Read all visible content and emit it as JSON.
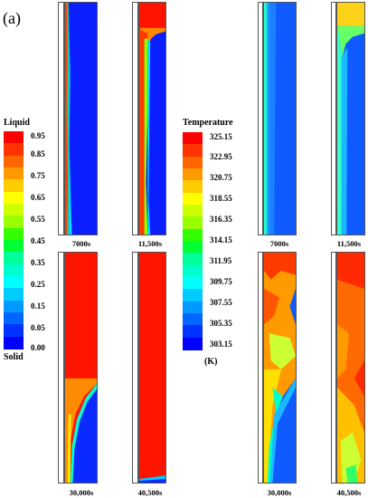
{
  "panel_label": "(a)",
  "liquid_legend": {
    "title": "Liquid",
    "bottom_label": "Solid",
    "ticks": [
      "0.95",
      "0.85",
      "0.75",
      "0.65",
      "0.55",
      "0.45",
      "0.35",
      "0.25",
      "0.15",
      "0.05",
      "0.00"
    ]
  },
  "temperature_legend": {
    "title": "Temperature",
    "unit": "(K)",
    "ticks": [
      "325.15",
      "322.95",
      "320.75",
      "318.55",
      "316.35",
      "314.15",
      "311.95",
      "309.75",
      "307.55",
      "305.35",
      "303.15"
    ]
  },
  "colormap": [
    "#ff0000",
    "#ff3300",
    "#ff6600",
    "#ff9900",
    "#ffcc00",
    "#ffff00",
    "#ccff00",
    "#99ff00",
    "#33ff00",
    "#00ff33",
    "#00ff99",
    "#00ffcc",
    "#00ffff",
    "#00ccff",
    "#0099ff",
    "#0066ff",
    "#0033ff",
    "#0000ff"
  ],
  "time_labels": {
    "liquid_top": [
      "7000s",
      "11,500s"
    ],
    "liquid_bottom": [
      "30,000s",
      "40,500s"
    ],
    "temp_top": [
      "7000s",
      "11,500s"
    ],
    "temp_bottom": [
      "30,000s",
      "40,500s"
    ]
  }
}
